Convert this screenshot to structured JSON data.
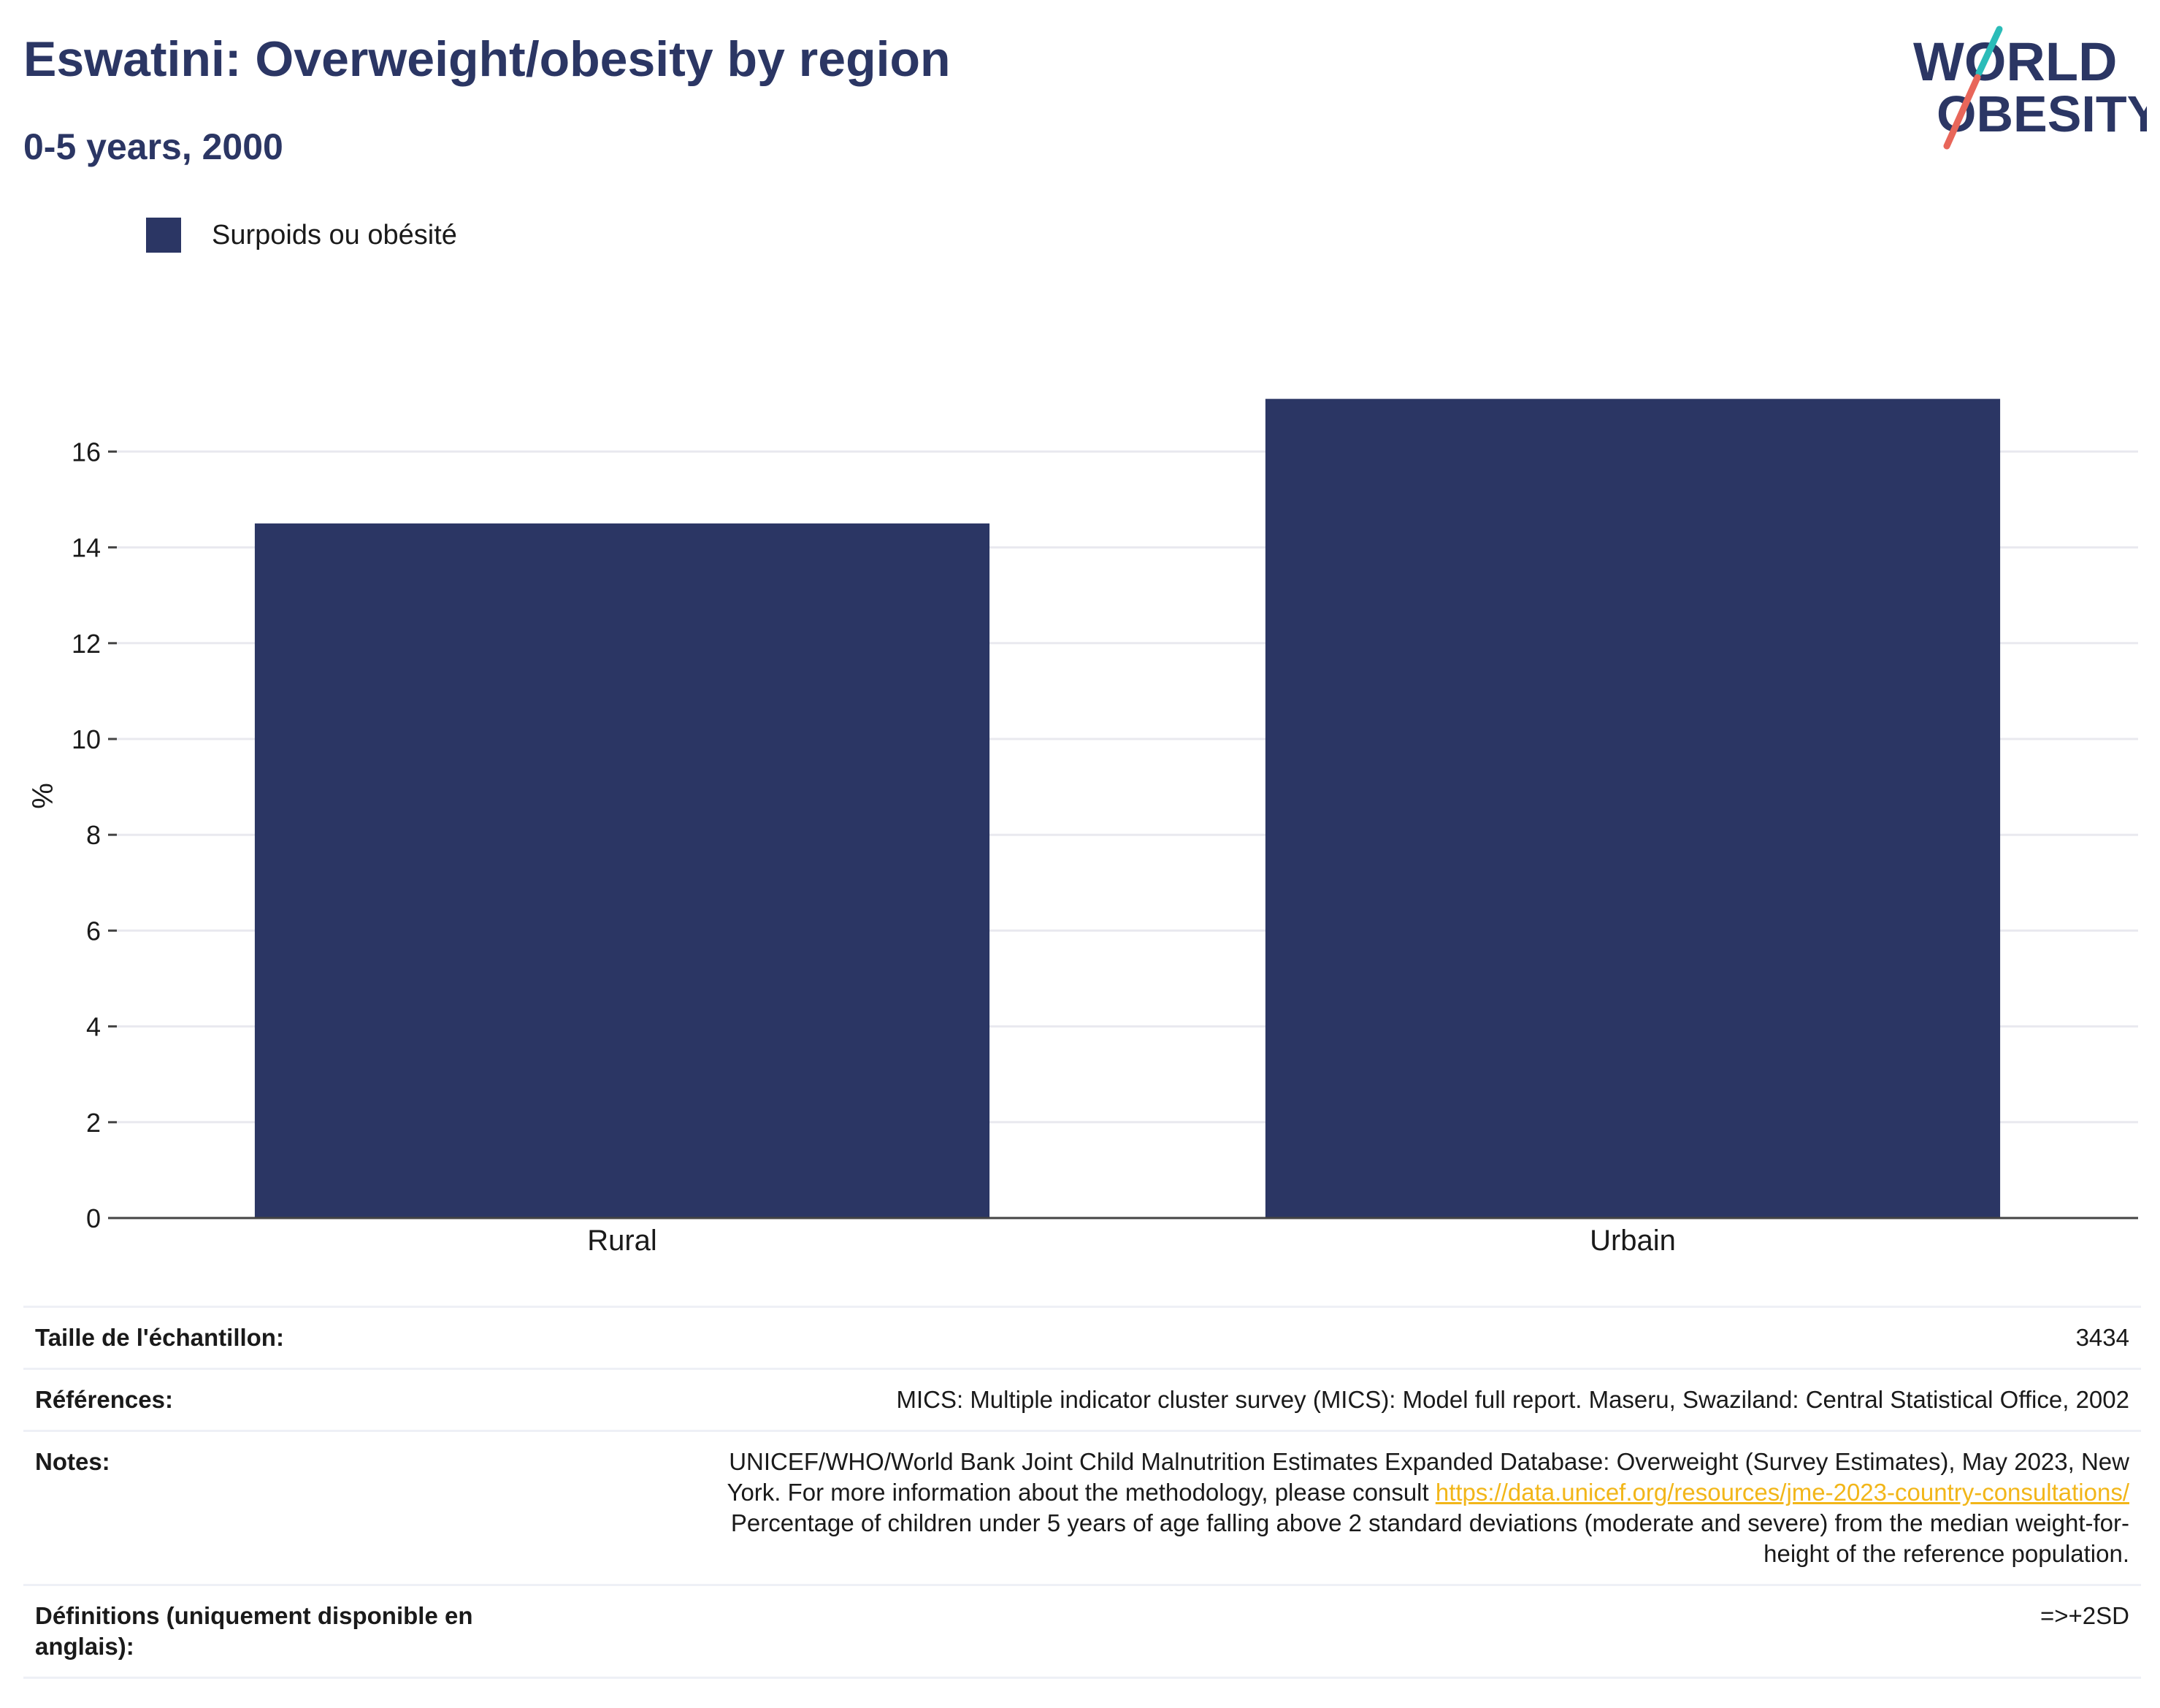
{
  "header": {
    "title": "Eswatini: Overweight/obesity by region",
    "subtitle": "0-5 years, 2000"
  },
  "logo": {
    "line1": "WORLD",
    "line2": "OBESITY",
    "colors": {
      "text": "#2b3664",
      "accent_teal": "#2bbcb8",
      "accent_red": "#e8665a"
    }
  },
  "legend": {
    "label": "Surpoids ou obésité"
  },
  "colors": {
    "bar": "#2b3664",
    "grid": "#e9e9ef",
    "axis": "#444444",
    "link": "#f2b619"
  },
  "chart_data": {
    "type": "bar",
    "categories": [
      "Rural",
      "Urbain"
    ],
    "series": [
      {
        "name": "Surpoids ou obésité",
        "values": [
          14.5,
          17.1
        ]
      }
    ],
    "xlabel": "",
    "ylabel": "%",
    "ylim": [
      0,
      17.5
    ],
    "yticks": [
      0,
      2,
      4,
      6,
      8,
      10,
      12,
      14,
      16
    ],
    "grid": true,
    "legend_position": "top-left"
  },
  "info": {
    "sample_label": "Taille de l'échantillon:",
    "sample_value": "3434",
    "refs_label": "Références:",
    "refs_value": "MICS: Multiple indicator cluster survey (MICS): Model full report. Maseru, Swaziland: Central Statistical Office, 2002",
    "notes_label": "Notes:",
    "notes_line1": "UNICEF/WHO/World Bank Joint Child Malnutrition Estimates Expanded Database: Overweight (Survey Estimates), May 2023, New",
    "notes_line2": "York. For more information about the methodology, please consult ",
    "notes_link": "https://data.unicef.org/resources/jme-2023-country-consultations/",
    "notes_line3": "Percentage of children under 5 years of age falling above 2 standard deviations (moderate and severe) from the median weight-for-",
    "notes_line4": "height of the reference population.",
    "defs_label": "Définitions (uniquement disponible en anglais):",
    "defs_value": "=>+2SD"
  }
}
